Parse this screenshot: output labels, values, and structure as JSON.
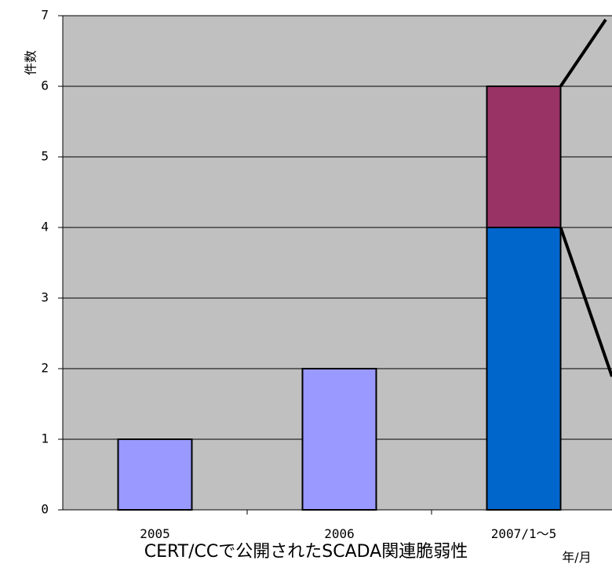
{
  "chart_data": {
    "type": "bar",
    "stacked": true,
    "title": "CERT/CCで公開されたSCADA関連脆弱性",
    "xlabel": "年/月",
    "ylabel": "件数",
    "categories": [
      "2005",
      "2006",
      "2007/1～5"
    ],
    "series": [
      {
        "values": [
          1,
          2,
          0
        ],
        "color": "#9999ff"
      },
      {
        "values": [
          0,
          0,
          4
        ],
        "color": "#0066cc"
      },
      {
        "values": [
          0,
          0,
          2
        ],
        "color": "#993366"
      }
    ],
    "ylim": [
      0,
      7
    ],
    "yticks": [
      0,
      1,
      2,
      3,
      4,
      5,
      6,
      7
    ],
    "grid": true,
    "plot_background": "#c0c0c0",
    "annotation_connector_color": "#000000"
  }
}
